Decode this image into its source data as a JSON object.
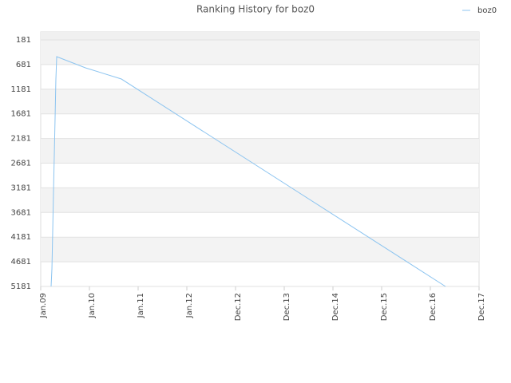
{
  "chart_data": {
    "type": "line",
    "title": "Ranking History for boz0",
    "x": [
      0.213,
      0.23,
      0.246,
      0.262,
      0.279,
      0.295,
      0.311,
      0.328,
      0.918,
      1.656,
      8.311
    ],
    "series": [
      {
        "name": "boz0",
        "color": "#8cc4f0",
        "values": [
          5181,
          4825,
          4064,
          3271,
          2511,
          1767,
          990,
          521,
          747,
          974,
          5181
        ]
      }
    ],
    "xlim": [
      0,
      9
    ],
    "xticks": [
      {
        "value": 0,
        "label": "Jan.09"
      },
      {
        "value": 1,
        "label": "Jan.10"
      },
      {
        "value": 2,
        "label": "Jan.11"
      },
      {
        "value": 3,
        "label": "Jan.12"
      },
      {
        "value": 4,
        "label": "Dec.12"
      },
      {
        "value": 5,
        "label": "Dec.13"
      },
      {
        "value": 6,
        "label": "Dec.14"
      },
      {
        "value": 7,
        "label": "Dec.15"
      },
      {
        "value": 8,
        "label": "Dec.16"
      },
      {
        "value": 9,
        "label": "Dec.17"
      }
    ],
    "ylim": [
      5181,
      19
    ],
    "yticks": [
      181,
      681,
      1181,
      1681,
      2181,
      2681,
      3181,
      3681,
      4181,
      4681,
      5181
    ],
    "grid": true,
    "legend": "top-right"
  }
}
